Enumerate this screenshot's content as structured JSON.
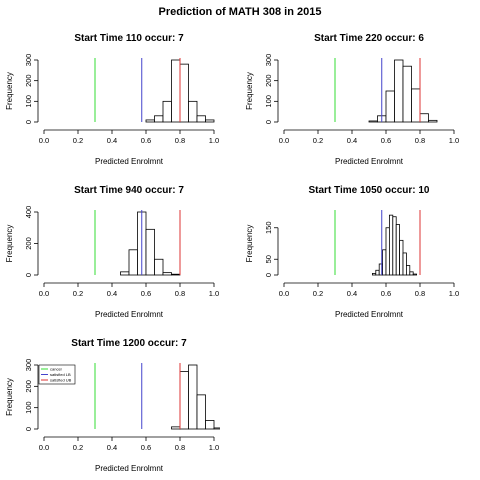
{
  "title": "Prediction of MATH 308 in 2015",
  "colors": {
    "cancel": "#33dd33",
    "lower": "#4444cc",
    "upper": "#dd3333",
    "bar_edge": "#000000"
  },
  "legend": {
    "placement": "top-left of last panel",
    "entries": [
      {
        "label": "cancel",
        "color": "#33dd33"
      },
      {
        "label": "satisfied LB",
        "color": "#4444cc"
      },
      {
        "label": "satisfied UB",
        "color": "#dd3333"
      }
    ]
  },
  "chart_data": [
    {
      "type": "bar",
      "title": "Start Time 110 occur: 7",
      "xlabel": "Predicted Enrolmnt",
      "ylabel": "Frequency",
      "xlim": [
        0.0,
        1.0
      ],
      "ylim": [
        0,
        300
      ],
      "x_ticks": [
        "0.0",
        "0.2",
        "0.4",
        "0.6",
        "0.8",
        "1.0"
      ],
      "y_ticks": [
        "0",
        "100",
        "200",
        "300"
      ],
      "y_tick_values": [
        0,
        100,
        200,
        300
      ],
      "lines": {
        "cancel": 0.3,
        "lower": 0.575,
        "upper": 0.8
      },
      "bins": [
        {
          "x0": 0.6,
          "x1": 0.65,
          "value": 10
        },
        {
          "x0": 0.65,
          "x1": 0.7,
          "value": 30
        },
        {
          "x0": 0.7,
          "x1": 0.75,
          "value": 100
        },
        {
          "x0": 0.75,
          "x1": 0.8,
          "value": 300
        },
        {
          "x0": 0.8,
          "x1": 0.85,
          "value": 280
        },
        {
          "x0": 0.85,
          "x1": 0.9,
          "value": 100
        },
        {
          "x0": 0.9,
          "x1": 0.95,
          "value": 30
        },
        {
          "x0": 0.95,
          "x1": 1.0,
          "value": 10
        }
      ]
    },
    {
      "type": "bar",
      "title": "Start Time 220 occur: 6",
      "xlabel": "Predicted Enrolmnt",
      "ylabel": "Frequency",
      "xlim": [
        0.0,
        1.0
      ],
      "ylim": [
        0,
        300
      ],
      "x_ticks": [
        "0.0",
        "0.2",
        "0.4",
        "0.6",
        "0.8",
        "1.0"
      ],
      "y_ticks": [
        "0",
        "100",
        "200",
        "300"
      ],
      "y_tick_values": [
        0,
        100,
        200,
        300
      ],
      "lines": {
        "cancel": 0.3,
        "lower": 0.575,
        "upper": 0.8
      },
      "bins": [
        {
          "x0": 0.5,
          "x1": 0.55,
          "value": 5
        },
        {
          "x0": 0.55,
          "x1": 0.6,
          "value": 30
        },
        {
          "x0": 0.6,
          "x1": 0.65,
          "value": 150
        },
        {
          "x0": 0.65,
          "x1": 0.7,
          "value": 300
        },
        {
          "x0": 0.7,
          "x1": 0.75,
          "value": 270
        },
        {
          "x0": 0.75,
          "x1": 0.8,
          "value": 160
        },
        {
          "x0": 0.8,
          "x1": 0.85,
          "value": 40
        },
        {
          "x0": 0.85,
          "x1": 0.9,
          "value": 8
        }
      ]
    },
    {
      "type": "bar",
      "title": "Start Time 940 occur: 7",
      "xlabel": "Predicted Enrolmnt",
      "ylabel": "Frequency",
      "xlim": [
        0.0,
        1.0
      ],
      "ylim": [
        0,
        400
      ],
      "x_ticks": [
        "0.0",
        "0.2",
        "0.4",
        "0.6",
        "0.8",
        "1.0"
      ],
      "y_ticks": [
        "0",
        "200",
        "400"
      ],
      "y_tick_values": [
        0,
        200,
        400
      ],
      "lines": {
        "cancel": 0.3,
        "lower": 0.575,
        "upper": 0.8
      },
      "bins": [
        {
          "x0": 0.45,
          "x1": 0.5,
          "value": 20
        },
        {
          "x0": 0.5,
          "x1": 0.55,
          "value": 160
        },
        {
          "x0": 0.55,
          "x1": 0.6,
          "value": 400
        },
        {
          "x0": 0.6,
          "x1": 0.65,
          "value": 290
        },
        {
          "x0": 0.65,
          "x1": 0.7,
          "value": 100
        },
        {
          "x0": 0.7,
          "x1": 0.75,
          "value": 15
        },
        {
          "x0": 0.75,
          "x1": 0.8,
          "value": 5
        }
      ]
    },
    {
      "type": "bar",
      "title": "Start Time 1050 occur: 10",
      "xlabel": "Predicted Enrolmnt",
      "ylabel": "Frequency",
      "xlim": [
        0.0,
        1.0
      ],
      "ylim": [
        0,
        200
      ],
      "x_ticks": [
        "0.0",
        "0.2",
        "0.4",
        "0.6",
        "0.8",
        "1.0"
      ],
      "y_ticks": [
        "0",
        "50",
        "150"
      ],
      "y_tick_values": [
        0,
        50,
        150
      ],
      "lines": {
        "cancel": 0.3,
        "lower": 0.575,
        "upper": 0.8
      },
      "bins": [
        {
          "x0": 0.52,
          "x1": 0.54,
          "value": 5
        },
        {
          "x0": 0.54,
          "x1": 0.56,
          "value": 15
        },
        {
          "x0": 0.56,
          "x1": 0.58,
          "value": 35
        },
        {
          "x0": 0.58,
          "x1": 0.6,
          "value": 80
        },
        {
          "x0": 0.6,
          "x1": 0.62,
          "value": 150
        },
        {
          "x0": 0.62,
          "x1": 0.64,
          "value": 190
        },
        {
          "x0": 0.64,
          "x1": 0.66,
          "value": 185
        },
        {
          "x0": 0.66,
          "x1": 0.68,
          "value": 160
        },
        {
          "x0": 0.68,
          "x1": 0.7,
          "value": 110
        },
        {
          "x0": 0.7,
          "x1": 0.72,
          "value": 70
        },
        {
          "x0": 0.72,
          "x1": 0.74,
          "value": 30
        },
        {
          "x0": 0.74,
          "x1": 0.76,
          "value": 10
        },
        {
          "x0": 0.76,
          "x1": 0.78,
          "value": 3
        }
      ]
    },
    {
      "type": "bar",
      "title": "Start Time 1200 occur: 7",
      "xlabel": "Predicted Enrolmnt",
      "ylabel": "Frequency",
      "xlim": [
        0.0,
        1.0
      ],
      "ylim": [
        0,
        300
      ],
      "x_ticks": [
        "0.0",
        "0.2",
        "0.4",
        "0.6",
        "0.8",
        "1.0"
      ],
      "y_ticks": [
        "0",
        "100",
        "200",
        "300"
      ],
      "y_tick_values": [
        0,
        100,
        200,
        300
      ],
      "lines": {
        "cancel": 0.3,
        "lower": 0.575,
        "upper": 0.8
      },
      "bins": [
        {
          "x0": 0.75,
          "x1": 0.8,
          "value": 10
        },
        {
          "x0": 0.8,
          "x1": 0.85,
          "value": 270
        },
        {
          "x0": 0.85,
          "x1": 0.9,
          "value": 300
        },
        {
          "x0": 0.9,
          "x1": 0.95,
          "value": 160
        },
        {
          "x0": 0.95,
          "x1": 1.0,
          "value": 40
        },
        {
          "x0": 1.0,
          "x1": 1.05,
          "value": 5
        }
      ]
    }
  ]
}
